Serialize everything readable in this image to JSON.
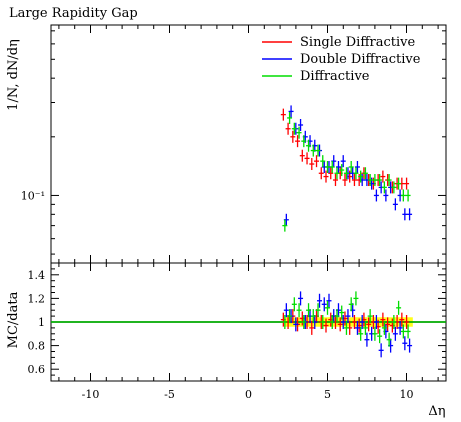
{
  "chart_data": [
    {
      "type": "scatter",
      "title": "Large Rapidity Gap",
      "ylabel": "1/N, dN/dη",
      "xlabel": "",
      "yscale": "log",
      "ylim": [
        0.045,
        0.75
      ],
      "xlim": [
        -12.5,
        12.5
      ],
      "ytick_labels": [
        "10⁻¹"
      ],
      "legend": "top-right",
      "x": [
        2.3,
        2.6,
        2.9,
        3.2,
        3.5,
        3.8,
        4.1,
        4.4,
        4.7,
        5.0,
        5.3,
        5.6,
        5.9,
        6.2,
        6.5,
        6.8,
        7.1,
        7.4,
        7.7,
        8.0,
        8.3,
        8.6,
        8.9,
        9.2,
        9.5,
        9.8,
        10.1
      ],
      "series": [
        {
          "name": "Single Diffractive",
          "color": "#ff0000",
          "values": [
            0.26,
            0.22,
            0.2,
            0.19,
            0.16,
            0.155,
            0.145,
            0.15,
            0.13,
            0.125,
            0.13,
            0.12,
            0.13,
            0.12,
            0.125,
            0.12,
            0.12,
            0.13,
            0.12,
            0.115,
            0.12,
            0.125,
            0.12,
            0.11,
            0.115,
            0.115,
            0.115
          ]
        },
        {
          "name": "Double Diffractive",
          "color": "#0000ff",
          "values": [
            0.075,
            0.27,
            0.22,
            0.23,
            0.2,
            0.19,
            0.18,
            0.17,
            0.14,
            0.14,
            0.15,
            0.14,
            0.15,
            0.13,
            0.13,
            0.14,
            0.12,
            0.12,
            0.115,
            0.1,
            0.11,
            0.1,
            0.11,
            0.09,
            0.1,
            0.08,
            0.08
          ]
        },
        {
          "name": "Diffractive",
          "color": "#00dd00",
          "values": [
            0.07,
            0.25,
            0.22,
            0.21,
            0.19,
            0.18,
            0.17,
            0.17,
            0.15,
            0.14,
            0.14,
            0.13,
            0.135,
            0.13,
            0.14,
            0.13,
            0.125,
            0.13,
            0.12,
            0.12,
            0.12,
            0.11,
            0.12,
            0.11,
            0.115,
            0.1,
            0.1
          ]
        }
      ]
    },
    {
      "type": "scatter",
      "title": "",
      "ylabel": "MC/data",
      "xlabel": "Δη",
      "ylim": [
        0.5,
        1.5
      ],
      "xlim": [
        -12.5,
        12.5
      ],
      "yticks": [
        0.6,
        0.8,
        1,
        1.2,
        1.4
      ],
      "ytick_labels": [
        "0.6",
        "0.8",
        "1",
        "1.2",
        "1.4"
      ],
      "xticks": [
        -10,
        -5,
        0,
        5,
        10
      ],
      "xtick_labels": [
        "-10",
        "-5",
        "0",
        "5",
        "10"
      ],
      "reference_line": 1,
      "x": [
        2.3,
        2.6,
        2.9,
        3.2,
        3.5,
        3.8,
        4.1,
        4.4,
        4.7,
        5.0,
        5.3,
        5.6,
        5.9,
        6.2,
        6.5,
        6.8,
        7.1,
        7.4,
        7.7,
        8.0,
        8.3,
        8.6,
        8.9,
        9.2,
        9.5,
        9.8,
        10.1
      ],
      "band": {
        "x_from": 2.3,
        "x_to": 10.4,
        "low": 0.96,
        "high": 1.04,
        "color": "#ffff00"
      },
      "series": [
        {
          "name": "Single Diffractive",
          "color": "#ff0000",
          "values": [
            1.02,
            1.0,
            1.05,
            0.98,
            1.03,
            1.0,
            0.95,
            1.05,
            1.0,
            0.97,
            1.02,
            1.0,
            0.98,
            1.03,
            0.95,
            1.0,
            0.97,
            1.02,
            0.98,
            1.0,
            0.96,
            1.02,
            0.98,
            0.97,
            1.0,
            1.02,
            1.0
          ]
        },
        {
          "name": "Double Diffractive",
          "color": "#0000ff",
          "values": [
            1.1,
            1.05,
            0.98,
            1.2,
            1.0,
            1.05,
            1.0,
            1.18,
            1.15,
            1.18,
            1.05,
            1.1,
            1.0,
            1.05,
            1.1,
            0.95,
            1.0,
            0.85,
            0.9,
            1.0,
            0.76,
            0.92,
            0.8,
            0.9,
            0.95,
            0.82,
            0.8
          ]
        },
        {
          "name": "Diffractive",
          "color": "#00dd00",
          "values": [
            1.0,
            1.05,
            1.15,
            1.1,
            1.0,
            1.1,
            1.05,
            1.1,
            1.0,
            1.12,
            1.0,
            1.05,
            1.08,
            0.95,
            1.15,
            1.2,
            0.9,
            0.95,
            1.05,
            0.9,
            0.88,
            0.95,
            0.85,
            1.0,
            1.12,
            0.92,
            0.92
          ]
        }
      ]
    }
  ]
}
